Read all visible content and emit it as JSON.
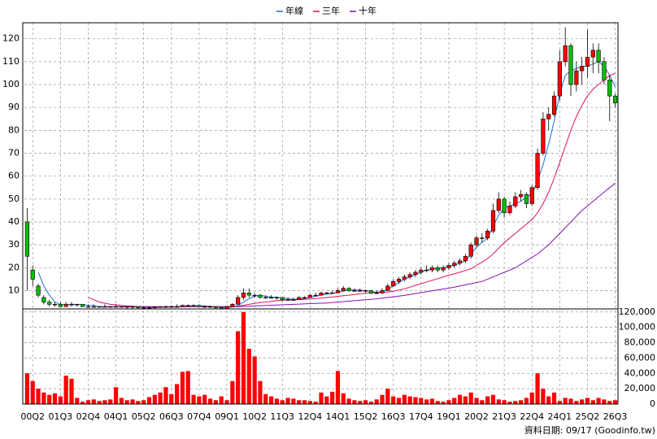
{
  "chart_data": {
    "type": "candlestick",
    "categories": [
      null,
      "00Q2",
      null,
      null,
      null,
      null,
      "01Q3",
      null,
      null,
      null,
      null,
      "02Q4",
      null,
      null,
      null,
      null,
      "04Q1",
      null,
      null,
      null,
      null,
      "05Q2",
      null,
      null,
      null,
      null,
      "06Q3",
      null,
      null,
      null,
      null,
      "07Q4",
      null,
      null,
      null,
      null,
      "09Q1",
      null,
      null,
      null,
      null,
      "10Q2",
      null,
      null,
      null,
      null,
      "11Q3",
      null,
      null,
      null,
      null,
      "12Q4",
      null,
      null,
      null,
      null,
      "14Q1",
      null,
      null,
      null,
      null,
      "15Q2",
      null,
      null,
      null,
      null,
      "16Q3",
      null,
      null,
      null,
      null,
      "17Q4",
      null,
      null,
      null,
      null,
      "19Q1",
      null,
      null,
      null,
      null,
      "20Q2",
      null,
      null,
      null,
      null,
      "21Q3",
      null,
      null,
      null,
      null,
      "22Q4",
      null,
      null,
      null,
      null,
      "24Q1",
      null,
      null,
      null,
      null,
      "25Q2",
      null,
      null,
      null,
      null,
      "26Q3"
    ],
    "candles": [
      [
        40,
        46,
        10,
        25
      ],
      [
        19,
        21,
        12,
        15
      ],
      [
        12,
        13,
        7,
        8
      ],
      [
        7,
        8,
        4,
        5
      ],
      [
        5,
        6,
        3,
        4
      ],
      [
        4,
        5,
        3,
        4
      ],
      [
        4,
        5,
        3,
        3
      ],
      [
        3,
        5,
        3,
        4
      ],
      [
        4,
        5,
        3,
        4
      ],
      [
        4,
        4,
        3,
        4
      ],
      [
        4,
        4,
        3,
        3
      ],
      [
        3,
        4,
        3,
        3
      ],
      [
        3,
        4,
        3,
        3
      ],
      [
        3,
        3,
        3,
        3
      ],
      [
        3,
        4,
        3,
        3
      ],
      [
        3,
        3,
        3,
        3
      ],
      [
        3,
        4,
        3,
        3
      ],
      [
        3,
        3,
        3,
        3
      ],
      [
        3,
        3,
        2,
        3
      ],
      [
        3,
        3,
        2,
        3
      ],
      [
        3,
        3,
        2,
        2.5
      ],
      [
        2.5,
        3,
        2,
        2.5
      ],
      [
        2.5,
        3,
        2,
        2.5
      ],
      [
        2.5,
        3,
        2,
        3
      ],
      [
        3,
        3,
        2.5,
        3
      ],
      [
        3,
        3.5,
        2.5,
        3
      ],
      [
        3,
        3.5,
        2.5,
        3
      ],
      [
        3,
        4,
        2.5,
        3
      ],
      [
        3,
        4,
        3,
        3.5
      ],
      [
        3.5,
        4,
        3,
        3.5
      ],
      [
        3.5,
        4,
        3,
        3.5
      ],
      [
        3.5,
        4,
        3,
        3
      ],
      [
        3,
        3.5,
        2.5,
        3
      ],
      [
        3,
        3.5,
        2.5,
        3
      ],
      [
        3,
        3,
        2,
        2.5
      ],
      [
        2.5,
        3,
        2,
        2
      ],
      [
        2,
        3.5,
        2,
        3
      ],
      [
        3,
        4.5,
        3,
        4
      ],
      [
        4,
        8,
        4,
        7
      ],
      [
        7,
        11,
        6,
        9
      ],
      [
        9,
        11,
        7,
        8
      ],
      [
        8,
        9,
        7,
        8
      ],
      [
        8,
        8.5,
        6.5,
        7
      ],
      [
        7,
        8,
        6.5,
        7
      ],
      [
        7,
        8,
        6.5,
        7
      ],
      [
        7,
        7.5,
        6,
        7
      ],
      [
        7,
        7,
        5.5,
        6
      ],
      [
        6,
        7,
        5.5,
        6
      ],
      [
        6,
        7,
        5.5,
        6
      ],
      [
        6,
        7.5,
        6,
        7
      ],
      [
        7,
        7.5,
        6.5,
        7
      ],
      [
        7,
        8.5,
        7,
        8
      ],
      [
        8,
        9,
        7.5,
        8
      ],
      [
        8,
        9.5,
        8,
        9
      ],
      [
        9,
        9.5,
        8.5,
        9
      ],
      [
        9,
        10,
        8.5,
        9
      ],
      [
        9,
        11,
        9,
        10
      ],
      [
        10,
        12,
        10,
        11
      ],
      [
        11,
        11.5,
        9.5,
        10
      ],
      [
        10,
        11,
        9.5,
        10
      ],
      [
        10,
        11,
        9.5,
        10
      ],
      [
        10,
        10.5,
        9,
        10
      ],
      [
        10,
        10,
        8.5,
        9
      ],
      [
        9,
        10,
        8.5,
        9
      ],
      [
        9,
        11,
        8.5,
        10
      ],
      [
        10,
        13,
        10,
        12
      ],
      [
        12,
        15,
        12,
        14
      ],
      [
        14,
        16,
        13,
        15
      ],
      [
        15,
        17,
        14,
        16
      ],
      [
        16,
        18,
        15,
        17
      ],
      [
        17,
        19,
        16,
        18
      ],
      [
        18,
        20,
        17,
        19
      ],
      [
        19,
        21,
        18,
        19
      ],
      [
        19,
        21,
        18,
        20
      ],
      [
        20,
        21,
        18,
        19
      ],
      [
        19,
        21,
        18,
        20
      ],
      [
        20,
        22,
        19,
        21
      ],
      [
        21,
        23,
        20,
        22
      ],
      [
        22,
        24,
        21,
        23
      ],
      [
        23,
        26,
        22,
        25
      ],
      [
        25,
        31,
        24,
        30
      ],
      [
        30,
        34,
        29,
        33
      ],
      [
        33,
        35,
        31,
        33
      ],
      [
        33,
        37,
        32,
        36
      ],
      [
        36,
        48,
        35,
        45
      ],
      [
        45,
        53,
        44,
        50
      ],
      [
        50,
        51,
        42,
        44
      ],
      [
        44,
        49,
        43,
        47
      ],
      [
        47,
        53,
        46,
        51
      ],
      [
        51,
        54,
        49,
        52
      ],
      [
        52,
        53,
        46,
        48
      ],
      [
        48,
        56,
        47,
        55
      ],
      [
        55,
        72,
        54,
        70
      ],
      [
        70,
        88,
        69,
        85
      ],
      [
        85,
        90,
        80,
        87
      ],
      [
        87,
        97,
        86,
        95
      ],
      [
        95,
        115,
        93,
        110
      ],
      [
        110,
        125,
        108,
        117
      ],
      [
        117,
        118,
        95,
        100
      ],
      [
        100,
        110,
        97,
        106
      ],
      [
        106,
        112,
        100,
        108
      ],
      [
        108,
        124,
        103,
        112
      ],
      [
        112,
        118,
        105,
        115
      ],
      [
        115,
        118,
        105,
        110
      ],
      [
        110,
        112,
        100,
        102
      ],
      [
        102,
        104,
        84,
        95
      ],
      [
        95,
        96,
        90,
        92
      ]
    ],
    "up_color": "#ff0000",
    "down_color": "#00c000",
    "series": [
      {
        "name": "年線",
        "color": "#1a6fd6",
        "values": [
          null,
          null,
          18,
          12,
          8,
          5,
          4,
          4,
          4,
          4,
          4,
          3.5,
          3.5,
          3,
          3,
          3,
          3,
          3,
          3,
          3,
          3,
          2.8,
          2.6,
          2.6,
          2.7,
          2.8,
          3,
          3,
          3.2,
          3.3,
          3.4,
          3.4,
          3.3,
          3.1,
          3,
          2.7,
          2.6,
          2.8,
          3.5,
          5,
          6.5,
          7.5,
          8,
          7.5,
          7.2,
          7,
          6.8,
          6.5,
          6.2,
          6.3,
          6.5,
          7,
          7.5,
          8,
          8.5,
          8.8,
          9.3,
          9.8,
          10.2,
          10.3,
          10.2,
          10,
          9.6,
          9.3,
          9.5,
          10.5,
          12,
          13.5,
          15,
          16,
          17,
          18,
          19,
          19.5,
          19.8,
          20,
          20.5,
          21,
          22,
          23,
          26,
          29,
          31,
          33,
          38,
          43,
          46,
          47,
          48,
          49,
          51,
          52,
          58,
          65,
          74,
          84,
          96,
          104,
          106,
          107,
          108,
          108,
          109,
          110,
          108,
          104,
          99
        ]
      },
      {
        "name": "三年",
        "color": "#e0105a",
        "values": [
          null,
          null,
          null,
          null,
          null,
          null,
          null,
          null,
          null,
          null,
          null,
          7,
          6,
          5,
          4.5,
          4,
          3.8,
          3.5,
          3.3,
          3.2,
          3,
          3,
          3,
          2.9,
          2.9,
          2.8,
          2.8,
          2.9,
          3,
          3,
          3.1,
          3.1,
          3.1,
          3.1,
          3,
          3,
          3,
          3,
          3.2,
          3.6,
          4,
          4.4,
          4.8,
          5,
          5.3,
          5.6,
          5.8,
          6,
          6,
          6.1,
          6.2,
          6.3,
          6.5,
          6.7,
          7,
          7.2,
          7.5,
          7.8,
          8,
          8.3,
          8.6,
          8.8,
          9,
          9.1,
          9.2,
          9.4,
          9.7,
          10.2,
          10.8,
          11.5,
          12.3,
          13,
          13.8,
          14.5,
          15.2,
          16,
          16.7,
          17.3,
          18,
          18.8,
          19.5,
          21,
          22.5,
          24,
          26,
          28.5,
          31,
          33,
          35,
          37,
          39,
          41,
          44,
          48,
          53,
          59,
          66,
          73,
          80,
          86,
          91,
          95,
          98,
          100,
          102,
          104,
          105
        ]
      },
      {
        "name": "十年",
        "color": "#8a10b8",
        "values": [
          null,
          null,
          null,
          null,
          null,
          null,
          null,
          null,
          null,
          null,
          null,
          null,
          null,
          3,
          3,
          3,
          3,
          3,
          3,
          3,
          3,
          3,
          3,
          3,
          3,
          3,
          3,
          3,
          3,
          3,
          3,
          3,
          3,
          3,
          3,
          3,
          3,
          3,
          3,
          3.1,
          3.2,
          3.3,
          3.4,
          3.5,
          3.6,
          3.7,
          3.8,
          3.9,
          4,
          4.1,
          4.2,
          4.3,
          4.4,
          4.5,
          4.6,
          4.8,
          5,
          5.2,
          5.4,
          5.6,
          5.8,
          6,
          6.2,
          6.4,
          6.7,
          7,
          7.3,
          7.6,
          7.9,
          8.3,
          8.7,
          9.1,
          9.5,
          9.9,
          10.3,
          10.7,
          11.1,
          11.5,
          12,
          12.5,
          13,
          13.5,
          14,
          15,
          16,
          17,
          18,
          19,
          20,
          21.5,
          23,
          24.5,
          26,
          28,
          30,
          32.5,
          35,
          37.5,
          40,
          42.5,
          45,
          47,
          49,
          51,
          53,
          55,
          57
        ]
      }
    ],
    "ylim": [
      2,
      127
    ],
    "yticks": [
      10,
      20,
      30,
      40,
      50,
      60,
      70,
      80,
      90,
      100,
      110,
      120
    ],
    "volume": {
      "color": "#ff0000",
      "ylim": [
        0,
        124000
      ],
      "yticks": [
        0,
        {
          "value": 20000,
          "label": "20,000"
        },
        {
          "value": 40000,
          "label": "40,000"
        },
        {
          "value": 60000,
          "label": "60,000"
        },
        {
          "value": 80000,
          "label": "80,000"
        },
        {
          "value": 100000,
          "label": "100,000"
        },
        {
          "value": 120000,
          "label": "120,000"
        }
      ],
      "values": [
        40000,
        30000,
        20000,
        15000,
        12000,
        14000,
        10000,
        37000,
        33000,
        8000,
        3000,
        5000,
        6000,
        4000,
        5000,
        6000,
        22000,
        8000,
        5000,
        6000,
        4000,
        5000,
        9000,
        12000,
        15000,
        22000,
        13000,
        26000,
        42000,
        43000,
        12000,
        10000,
        12000,
        7000,
        5000,
        10000,
        5000,
        30000,
        95000,
        120000,
        72000,
        62000,
        30000,
        13000,
        10000,
        7000,
        5000,
        8000,
        7000,
        5000,
        5000,
        4000,
        3000,
        15000,
        10000,
        16000,
        43000,
        14000,
        7000,
        5000,
        4000,
        5000,
        3000,
        6000,
        12000,
        20000,
        10000,
        8000,
        12000,
        10000,
        9000,
        8000,
        6000,
        7000,
        4000,
        3000,
        5000,
        8000,
        12000,
        10000,
        15000,
        8000,
        5000,
        10000,
        12000,
        6000,
        5000,
        3000,
        4000,
        5000,
        8000,
        15000,
        40000,
        20000,
        10000,
        15000,
        4000,
        8000,
        7000,
        4000,
        6000,
        8000,
        5000,
        8000,
        6000,
        4000,
        5000
      ]
    },
    "grid": true,
    "legend": "top",
    "source": "資料日期: 09/17 (Goodinfo.tw)"
  }
}
